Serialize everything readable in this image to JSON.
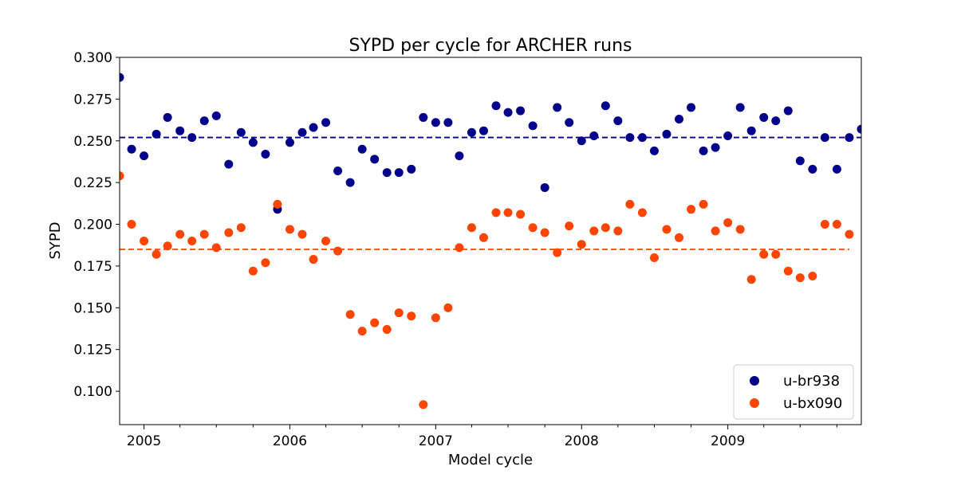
{
  "chart_data": {
    "type": "scatter",
    "title": "SYPD per cycle for ARCHER runs",
    "xlabel": "Model cycle",
    "ylabel": "SYPD",
    "x_axis": {
      "kind": "date",
      "range": [
        "2004-11-01",
        "2009-12-01"
      ],
      "major_ticks": [
        {
          "value": "2005-01-01",
          "label": "2005"
        },
        {
          "value": "2006-01-01",
          "label": "2006"
        },
        {
          "value": "2007-01-01",
          "label": "2007"
        },
        {
          "value": "2008-01-01",
          "label": "2008"
        },
        {
          "value": "2009-01-01",
          "label": "2009"
        }
      ],
      "minor_ticks": "quarterly"
    },
    "y_axis": {
      "range": [
        0.08,
        0.3
      ],
      "ticks": [
        "0.100",
        "0.125",
        "0.150",
        "0.175",
        "0.200",
        "0.225",
        "0.250",
        "0.275",
        "0.300"
      ]
    },
    "grid": false,
    "legend": {
      "position": "bottom-right"
    },
    "series": [
      {
        "name": "u-br938",
        "color": "#00008b",
        "mean": 0.252,
        "x": [
          "2004-11-01",
          "2004-12-01",
          "2005-01-01",
          "2005-02-01",
          "2005-03-01",
          "2005-04-01",
          "2005-05-01",
          "2005-06-01",
          "2005-07-01",
          "2005-08-01",
          "2005-09-01",
          "2005-10-01",
          "2005-11-01",
          "2005-12-01",
          "2006-01-01",
          "2006-02-01",
          "2006-03-01",
          "2006-04-01",
          "2006-05-01",
          "2006-06-01",
          "2006-07-01",
          "2006-08-01",
          "2006-09-01",
          "2006-10-01",
          "2006-11-01",
          "2006-12-01",
          "2007-01-01",
          "2007-02-01",
          "2007-03-01",
          "2007-04-01",
          "2007-05-01",
          "2007-06-01",
          "2007-07-01",
          "2007-08-01",
          "2007-09-01",
          "2007-10-01",
          "2007-11-01",
          "2007-12-01",
          "2008-01-01",
          "2008-02-01",
          "2008-03-01",
          "2008-04-01",
          "2008-05-01",
          "2008-06-01",
          "2008-07-01",
          "2008-08-01",
          "2008-09-01",
          "2008-10-01",
          "2008-11-01",
          "2008-12-01",
          "2009-01-01",
          "2009-02-01",
          "2009-03-01",
          "2009-04-01",
          "2009-05-01",
          "2009-06-01",
          "2009-07-01",
          "2009-08-01",
          "2009-09-01",
          "2009-10-01",
          "2009-11-01",
          "2009-12-01"
        ],
        "y": [
          0.288,
          0.245,
          0.241,
          0.254,
          0.264,
          0.256,
          0.252,
          0.262,
          0.265,
          0.236,
          0.255,
          0.249,
          0.242,
          0.209,
          0.249,
          0.255,
          0.258,
          0.261,
          0.232,
          0.225,
          0.245,
          0.239,
          0.231,
          0.231,
          0.233,
          0.264,
          0.261,
          0.261,
          0.241,
          0.255,
          0.256,
          0.271,
          0.267,
          0.268,
          0.259,
          0.222,
          0.27,
          0.261,
          0.25,
          0.253,
          0.271,
          0.262,
          0.252,
          0.252,
          0.244,
          0.254,
          0.263,
          0.27,
          0.244,
          0.246,
          0.253,
          0.27,
          0.256,
          0.264,
          0.262,
          0.268,
          0.238,
          0.233,
          0.252,
          0.233,
          0.252,
          0.257
        ]
      },
      {
        "name": "u-bx090",
        "color": "#ff4500",
        "mean": 0.185,
        "x": [
          "2004-11-01",
          "2004-12-01",
          "2005-01-01",
          "2005-02-01",
          "2005-03-01",
          "2005-04-01",
          "2005-05-01",
          "2005-06-01",
          "2005-07-01",
          "2005-08-01",
          "2005-09-01",
          "2005-10-01",
          "2005-11-01",
          "2005-12-01",
          "2006-01-01",
          "2006-02-01",
          "2006-03-01",
          "2006-04-01",
          "2006-05-01",
          "2006-06-01",
          "2006-07-01",
          "2006-08-01",
          "2006-09-01",
          "2006-10-01",
          "2006-11-01",
          "2006-12-01",
          "2007-01-01",
          "2007-02-01",
          "2007-03-01",
          "2007-04-01",
          "2007-05-01",
          "2007-06-01",
          "2007-07-01",
          "2007-08-01",
          "2007-09-01",
          "2007-10-01",
          "2007-11-01",
          "2007-12-01",
          "2008-01-01",
          "2008-02-01",
          "2008-03-01",
          "2008-04-01",
          "2008-05-01",
          "2008-06-01",
          "2008-07-01",
          "2008-08-01",
          "2008-09-01",
          "2008-10-01",
          "2008-11-01",
          "2008-12-01",
          "2009-01-01",
          "2009-02-01",
          "2009-03-01",
          "2009-04-01",
          "2009-05-01",
          "2009-06-01",
          "2009-07-01",
          "2009-08-01",
          "2009-09-01",
          "2009-10-01",
          "2009-11-01"
        ],
        "y": [
          0.229,
          0.2,
          0.19,
          0.182,
          0.187,
          0.194,
          0.19,
          0.194,
          0.186,
          0.195,
          0.198,
          0.172,
          0.177,
          0.212,
          0.197,
          0.194,
          0.179,
          0.19,
          0.184,
          0.146,
          0.136,
          0.141,
          0.137,
          0.147,
          0.145,
          0.092,
          0.144,
          0.15,
          0.186,
          0.198,
          0.192,
          0.207,
          0.207,
          0.206,
          0.198,
          0.195,
          0.183,
          0.199,
          0.188,
          0.196,
          0.198,
          0.196,
          0.212,
          0.207,
          0.18,
          0.197,
          0.192,
          0.209,
          0.212,
          0.196,
          0.201,
          0.197,
          0.167,
          0.182,
          0.182,
          0.172,
          0.168,
          0.169,
          0.2,
          0.2,
          0.194
        ]
      }
    ]
  }
}
